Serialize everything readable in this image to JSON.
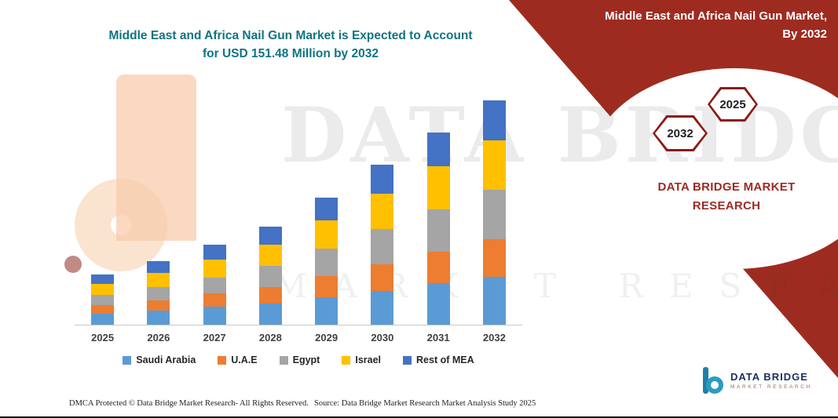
{
  "title": {
    "line1": "Middle East and Africa Nail Gun Market is Expected to Account",
    "line2": "for USD 151.48 Million by 2032"
  },
  "banner": {
    "line1": "Middle East and Africa Nail Gun Market,",
    "line2": "By 2032",
    "color": "#9E2B20"
  },
  "badges": {
    "year_left": "2032",
    "year_right": "2025"
  },
  "brand": {
    "line1": "DATA BRIDGE MARKET",
    "line2": "RESEARCH",
    "color": "#9E2A25"
  },
  "watermark": {
    "line1": "DATA BRIDGE",
    "line2": "MARKET RESEARCH"
  },
  "footer": {
    "dmca": "DMCA Protected © Data Bridge Market Research-  All Rights Reserved.",
    "source": "Source: Data Bridge Market Research  Market Analysis Study 2025"
  },
  "footer_logo": {
    "icon": "data-bridge-b-icon",
    "name": "DATA BRIDGE",
    "subtitle": "MARKET RESEARCH"
  },
  "colors": {
    "title_teal": "#0F7482",
    "ribbon_red": "#9E2B20"
  },
  "chart_data": {
    "type": "bar",
    "stacked": true,
    "title": "Middle East and Africa Nail Gun Market is Expected to Account for USD 151.48 Million by 2032",
    "unit": "USD Million",
    "xlabel": "",
    "ylabel": "",
    "ylim": [
      0,
      160
    ],
    "grid": false,
    "legend_position": "bottom",
    "categories": [
      "2025",
      "2026",
      "2027",
      "2028",
      "2029",
      "2030",
      "2031",
      "2032"
    ],
    "series": [
      {
        "name": "Saudi Arabia",
        "color": "#5B9BD5",
        "values": [
          7.5,
          9.5,
          12.0,
          14.5,
          18.5,
          23.0,
          28.0,
          32.5
        ]
      },
      {
        "name": "U.A.E",
        "color": "#ED7D31",
        "values": [
          5.5,
          7.0,
          9.0,
          11.0,
          14.5,
          18.0,
          21.5,
          25.5
        ]
      },
      {
        "name": "Egypt",
        "color": "#A5A5A5",
        "values": [
          7.0,
          9.0,
          11.0,
          14.0,
          18.5,
          23.5,
          28.5,
          33.0
        ]
      },
      {
        "name": "Israel",
        "color": "#FFC000",
        "values": [
          7.5,
          9.5,
          12.0,
          14.5,
          19.0,
          24.0,
          29.0,
          33.5
        ]
      },
      {
        "name": "Rest of MEA",
        "color": "#4472C4",
        "values": [
          6.5,
          8.0,
          10.0,
          12.0,
          15.5,
          19.5,
          23.0,
          26.98
        ]
      }
    ],
    "totals": [
      34.0,
      43.0,
      54.0,
      66.0,
      86.0,
      108.0,
      130.0,
      151.48
    ]
  }
}
